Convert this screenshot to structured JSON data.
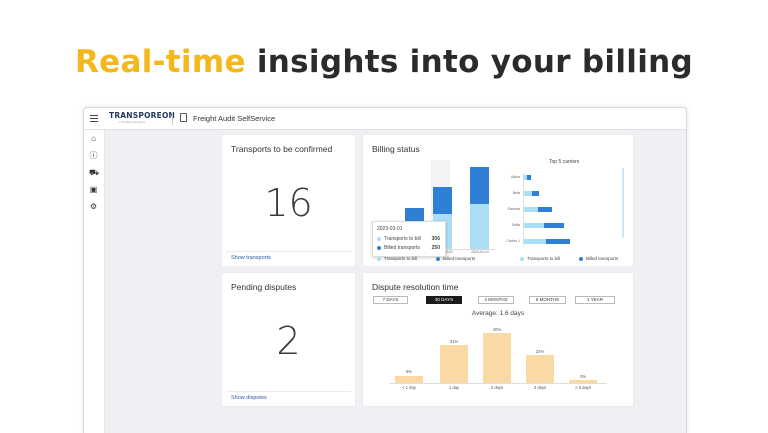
{
  "headline": {
    "accent": "Real-time",
    "rest": "insights into your billing"
  },
  "app": {
    "logo_main": "TRANSPOREON",
    "logo_sub": "A Trimble Company",
    "title": "Freight Audit SelfService",
    "nav_icons": [
      "home-icon",
      "alert-icon",
      "truck-icon",
      "document-icon",
      "settings-icon"
    ]
  },
  "transports": {
    "title": "Transports to be confirmed",
    "value": "16",
    "link": "Show transports"
  },
  "disputes": {
    "title": "Pending disputes",
    "value": "2",
    "link": "Show disputes"
  },
  "billing": {
    "title": "Billing status",
    "top_carriers_title": "Top 5 carriers",
    "legend_to_bill": "Transports to bill",
    "legend_billed": "Billed transports",
    "tooltip_date": "2023-03-01",
    "tooltip_to_bill_label": "Transports to bill",
    "tooltip_to_bill_value": "306",
    "tooltip_billed_label": "Billed transports",
    "tooltip_billed_value": "250",
    "x_labels": [
      "2023-03-01",
      "2023-04-01"
    ]
  },
  "dispute_resolution": {
    "title": "Dispute resolution time",
    "ranges": [
      "7 DAYS",
      "30 DAYS",
      "4 MONTHS",
      "6 MONTHS",
      "1 YEAR"
    ],
    "active_range": "30 DAYS",
    "average": "Average: 1.6 days"
  },
  "chart_data": [
    {
      "type": "bar",
      "title": "Billing status",
      "categories": [
        "2023-02-01",
        "2023-03-01",
        "2023-04-01"
      ],
      "series": [
        {
          "name": "Transports to bill",
          "values": [
            0,
            306,
            320
          ]
        },
        {
          "name": "Billed transports",
          "values": [
            140,
            250,
            360
          ]
        }
      ],
      "stacked": true,
      "colors": {
        "Transports to bill": "#a9def5",
        "Billed transports": "#2f7fd6"
      }
    },
    {
      "type": "bar",
      "orientation": "horizontal",
      "title": "Top 5 carriers",
      "categories": [
        "Alpha",
        "Beta",
        "Gamma",
        "Delta",
        "Carrier 1"
      ],
      "series": [
        {
          "name": "Transports to bill",
          "values": [
            2,
            3,
            5,
            7,
            9
          ]
        },
        {
          "name": "Billed transports",
          "values": [
            2,
            3,
            5,
            8,
            9
          ]
        }
      ],
      "stacked": true
    },
    {
      "type": "bar",
      "title": "Dispute resolution time",
      "categories": [
        "< 1 day",
        "1 day",
        "2 days",
        "3 days",
        "> 3 days"
      ],
      "values": [
        5,
        31,
        40,
        22,
        3
      ],
      "labels": [
        "5%",
        "31%",
        "40%",
        "22%",
        "3%"
      ],
      "color": "#fbd9a4"
    }
  ]
}
